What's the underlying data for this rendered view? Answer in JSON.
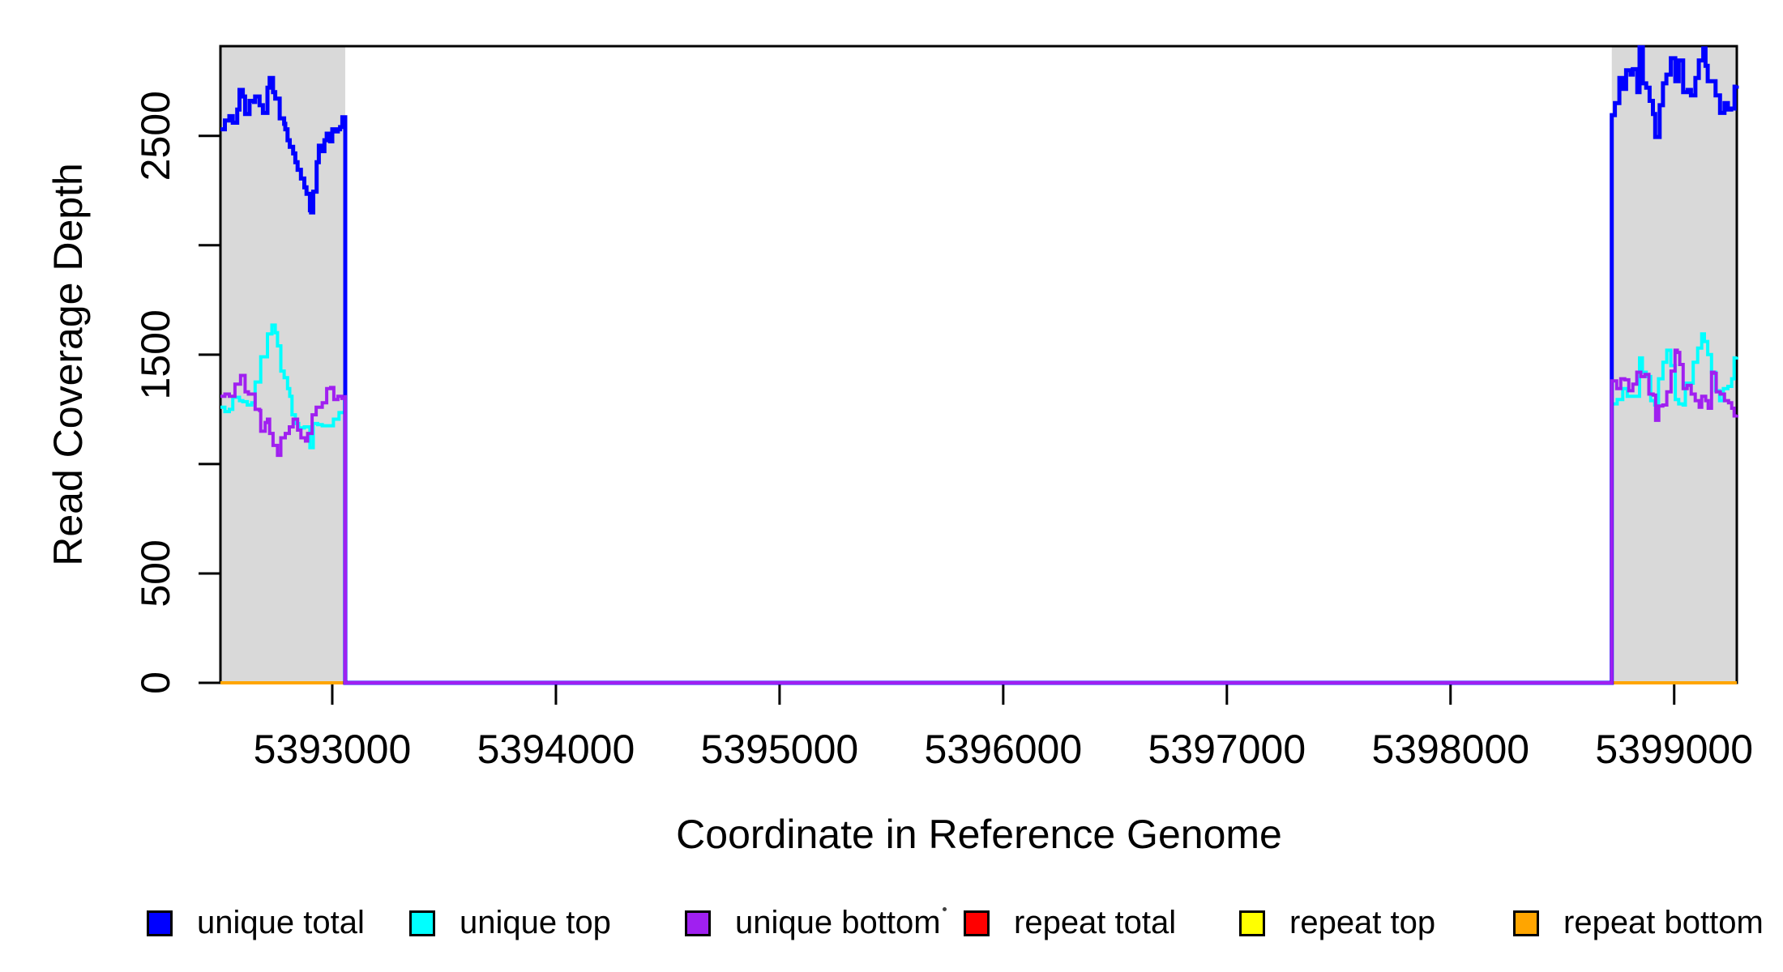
{
  "figure": {
    "background": "#FFFFFF",
    "axis_color": "#000000"
  },
  "chart_data": {
    "type": "line",
    "title": "",
    "xlabel": "Coordinate in Reference Genome",
    "ylabel": "Read Coverage Depth",
    "xlim": [
      5392500,
      5399280
    ],
    "ylim": [
      0,
      2910
    ],
    "grid": false,
    "x_ticks": [
      5393000,
      5394000,
      5395000,
      5396000,
      5397000,
      5398000,
      5399000
    ],
    "x_tick_labels": [
      "5393000",
      "5394000",
      "5395000",
      "5396000",
      "5397000",
      "5398000",
      "5399000"
    ],
    "y_ticks": [
      0,
      500,
      1000,
      1500,
      2000,
      2500
    ],
    "y_tick_labels": [
      "0",
      "500",
      "",
      "1500",
      "",
      "2500"
    ],
    "shaded_regions": [
      {
        "x0": 5392500,
        "x1": 5393058,
        "color": "#D9D9D9"
      },
      {
        "x0": 5398721,
        "x1": 5399280,
        "color": "#D9D9D9"
      }
    ],
    "series": [
      {
        "name": "repeat total",
        "color": "#FF0000",
        "line_width": 4,
        "step": true,
        "points": [
          [
            5392500,
            0
          ],
          [
            5399280,
            0
          ]
        ]
      },
      {
        "name": "repeat top",
        "color": "#FFFF00",
        "line_width": 4,
        "step": true,
        "points": [
          [
            5392500,
            0
          ],
          [
            5399280,
            0
          ]
        ]
      },
      {
        "name": "repeat bottom",
        "color": "#FFA500",
        "line_width": 4,
        "step": true,
        "points": [
          [
            5392500,
            0
          ],
          [
            5399280,
            0
          ]
        ]
      },
      {
        "name": "unique top",
        "color": "#00FFFF",
        "line_width": 4,
        "step": true,
        "points": [
          [
            5392500,
            1260
          ],
          [
            5392520,
            1240
          ],
          [
            5392540,
            1250
          ],
          [
            5392555,
            1305
          ],
          [
            5392585,
            1290
          ],
          [
            5392600,
            1285
          ],
          [
            5392620,
            1270
          ],
          [
            5392640,
            1280
          ],
          [
            5392655,
            1375
          ],
          [
            5392680,
            1490
          ],
          [
            5392710,
            1595
          ],
          [
            5392730,
            1635
          ],
          [
            5392745,
            1600
          ],
          [
            5392755,
            1540
          ],
          [
            5392770,
            1425
          ],
          [
            5392785,
            1395
          ],
          [
            5392800,
            1345
          ],
          [
            5392810,
            1310
          ],
          [
            5392820,
            1225
          ],
          [
            5392835,
            1185
          ],
          [
            5392850,
            1165
          ],
          [
            5392875,
            1170
          ],
          [
            5392900,
            1075
          ],
          [
            5392915,
            1185
          ],
          [
            5392935,
            1180
          ],
          [
            5392955,
            1175
          ],
          [
            5392980,
            1175
          ],
          [
            5393005,
            1205
          ],
          [
            5393030,
            1235
          ],
          [
            5393055,
            1290
          ],
          [
            5393058,
            1295
          ],
          [
            5393058,
            0
          ],
          [
            5398721,
            0
          ],
          [
            5398721,
            1275
          ],
          [
            5398745,
            1295
          ],
          [
            5398770,
            1345
          ],
          [
            5398790,
            1310
          ],
          [
            5398845,
            1485
          ],
          [
            5398858,
            1420
          ],
          [
            5398875,
            1400
          ],
          [
            5398895,
            1290
          ],
          [
            5398913,
            1270
          ],
          [
            5398930,
            1390
          ],
          [
            5398950,
            1465
          ],
          [
            5398967,
            1520
          ],
          [
            5398985,
            1450
          ],
          [
            5399005,
            1295
          ],
          [
            5399020,
            1275
          ],
          [
            5399040,
            1270
          ],
          [
            5399050,
            1370
          ],
          [
            5399085,
            1465
          ],
          [
            5399105,
            1530
          ],
          [
            5399123,
            1595
          ],
          [
            5399135,
            1560
          ],
          [
            5399150,
            1500
          ],
          [
            5399167,
            1420
          ],
          [
            5399185,
            1335
          ],
          [
            5399203,
            1290
          ],
          [
            5399220,
            1345
          ],
          [
            5399240,
            1355
          ],
          [
            5399257,
            1390
          ],
          [
            5399268,
            1485
          ],
          [
            5399280,
            1490
          ]
        ]
      },
      {
        "name": "unique total",
        "color": "#0000FF",
        "line_width": 5,
        "step": true,
        "points": [
          [
            5392500,
            2530
          ],
          [
            5392520,
            2570
          ],
          [
            5392540,
            2590
          ],
          [
            5392555,
            2560
          ],
          [
            5392575,
            2620
          ],
          [
            5392585,
            2710
          ],
          [
            5392600,
            2680
          ],
          [
            5392610,
            2600
          ],
          [
            5392630,
            2660
          ],
          [
            5392650,
            2655
          ],
          [
            5392655,
            2680
          ],
          [
            5392675,
            2640
          ],
          [
            5392690,
            2605
          ],
          [
            5392710,
            2720
          ],
          [
            5392720,
            2765
          ],
          [
            5392735,
            2700
          ],
          [
            5392745,
            2670
          ],
          [
            5392765,
            2580
          ],
          [
            5392785,
            2555
          ],
          [
            5392790,
            2530
          ],
          [
            5392800,
            2480
          ],
          [
            5392810,
            2450
          ],
          [
            5392825,
            2420
          ],
          [
            5392835,
            2380
          ],
          [
            5392845,
            2345
          ],
          [
            5392860,
            2305
          ],
          [
            5392875,
            2265
          ],
          [
            5392885,
            2235
          ],
          [
            5392900,
            2160
          ],
          [
            5392905,
            2150
          ],
          [
            5392915,
            2245
          ],
          [
            5392930,
            2380
          ],
          [
            5392940,
            2455
          ],
          [
            5392955,
            2430
          ],
          [
            5392965,
            2480
          ],
          [
            5392975,
            2510
          ],
          [
            5392990,
            2475
          ],
          [
            5393000,
            2530
          ],
          [
            5393010,
            2520
          ],
          [
            5393025,
            2530
          ],
          [
            5393035,
            2540
          ],
          [
            5393045,
            2585
          ],
          [
            5393058,
            2560
          ],
          [
            5393058,
            0
          ],
          [
            5398721,
            0
          ],
          [
            5398721,
            2595
          ],
          [
            5398735,
            2650
          ],
          [
            5398755,
            2765
          ],
          [
            5398770,
            2715
          ],
          [
            5398785,
            2800
          ],
          [
            5398805,
            2780
          ],
          [
            5398815,
            2805
          ],
          [
            5398835,
            2700
          ],
          [
            5398845,
            2905
          ],
          [
            5398860,
            2740
          ],
          [
            5398875,
            2720
          ],
          [
            5398890,
            2660
          ],
          [
            5398905,
            2600
          ],
          [
            5398915,
            2495
          ],
          [
            5398935,
            2640
          ],
          [
            5398950,
            2740
          ],
          [
            5398965,
            2780
          ],
          [
            5398985,
            2855
          ],
          [
            5399005,
            2750
          ],
          [
            5399020,
            2845
          ],
          [
            5399040,
            2700
          ],
          [
            5399060,
            2710
          ],
          [
            5399075,
            2685
          ],
          [
            5399095,
            2765
          ],
          [
            5399110,
            2845
          ],
          [
            5399130,
            2900
          ],
          [
            5399140,
            2820
          ],
          [
            5399150,
            2750
          ],
          [
            5399170,
            2750
          ],
          [
            5399185,
            2685
          ],
          [
            5399205,
            2605
          ],
          [
            5399225,
            2650
          ],
          [
            5399240,
            2620
          ],
          [
            5399255,
            2625
          ],
          [
            5399270,
            2725
          ],
          [
            5399280,
            2730
          ]
        ]
      },
      {
        "name": "unique bottom",
        "color": "#A020F0",
        "line_width": 4,
        "step": true,
        "points": [
          [
            5392500,
            1310
          ],
          [
            5392520,
            1320
          ],
          [
            5392540,
            1310
          ],
          [
            5392565,
            1365
          ],
          [
            5392590,
            1405
          ],
          [
            5392610,
            1330
          ],
          [
            5392625,
            1320
          ],
          [
            5392655,
            1250
          ],
          [
            5392675,
            1245
          ],
          [
            5392680,
            1150
          ],
          [
            5392700,
            1190
          ],
          [
            5392710,
            1205
          ],
          [
            5392720,
            1140
          ],
          [
            5392735,
            1085
          ],
          [
            5392755,
            1040
          ],
          [
            5392770,
            1120
          ],
          [
            5392790,
            1140
          ],
          [
            5392808,
            1170
          ],
          [
            5392825,
            1205
          ],
          [
            5392845,
            1155
          ],
          [
            5392860,
            1120
          ],
          [
            5392880,
            1105
          ],
          [
            5392890,
            1140
          ],
          [
            5392910,
            1225
          ],
          [
            5392928,
            1260
          ],
          [
            5392955,
            1280
          ],
          [
            5392975,
            1345
          ],
          [
            5392993,
            1350
          ],
          [
            5393007,
            1295
          ],
          [
            5393025,
            1310
          ],
          [
            5393043,
            1300
          ],
          [
            5393058,
            1315
          ],
          [
            5393058,
            0
          ],
          [
            5398721,
            0
          ],
          [
            5398721,
            1380
          ],
          [
            5398743,
            1345
          ],
          [
            5398761,
            1390
          ],
          [
            5398779,
            1385
          ],
          [
            5398797,
            1335
          ],
          [
            5398815,
            1365
          ],
          [
            5398833,
            1420
          ],
          [
            5398851,
            1400
          ],
          [
            5398869,
            1410
          ],
          [
            5398887,
            1320
          ],
          [
            5398906,
            1315
          ],
          [
            5398917,
            1200
          ],
          [
            5398931,
            1265
          ],
          [
            5398949,
            1270
          ],
          [
            5398967,
            1330
          ],
          [
            5398986,
            1425
          ],
          [
            5399004,
            1520
          ],
          [
            5399014,
            1510
          ],
          [
            5399025,
            1455
          ],
          [
            5399040,
            1345
          ],
          [
            5399058,
            1360
          ],
          [
            5399076,
            1320
          ],
          [
            5399094,
            1290
          ],
          [
            5399112,
            1260
          ],
          [
            5399123,
            1310
          ],
          [
            5399141,
            1290
          ],
          [
            5399152,
            1255
          ],
          [
            5399167,
            1420
          ],
          [
            5399178,
            1415
          ],
          [
            5399188,
            1330
          ],
          [
            5399206,
            1320
          ],
          [
            5399225,
            1290
          ],
          [
            5399243,
            1280
          ],
          [
            5399257,
            1255
          ],
          [
            5399268,
            1220
          ],
          [
            5399280,
            1225
          ]
        ]
      }
    ],
    "legend": {
      "position": "bottom",
      "items": [
        {
          "label": "unique total",
          "color": "#0000FF"
        },
        {
          "label": "unique top",
          "color": "#00FFFF"
        },
        {
          "label": "unique bottom",
          "color": "#A020F0"
        },
        {
          "label": "repeat total",
          "color": "#FF0000"
        },
        {
          "label": "repeat top",
          "color": "#FFFF00"
        },
        {
          "label": "repeat bottom",
          "color": "#FFA500"
        }
      ],
      "stray_dot_color": "#404040"
    }
  }
}
